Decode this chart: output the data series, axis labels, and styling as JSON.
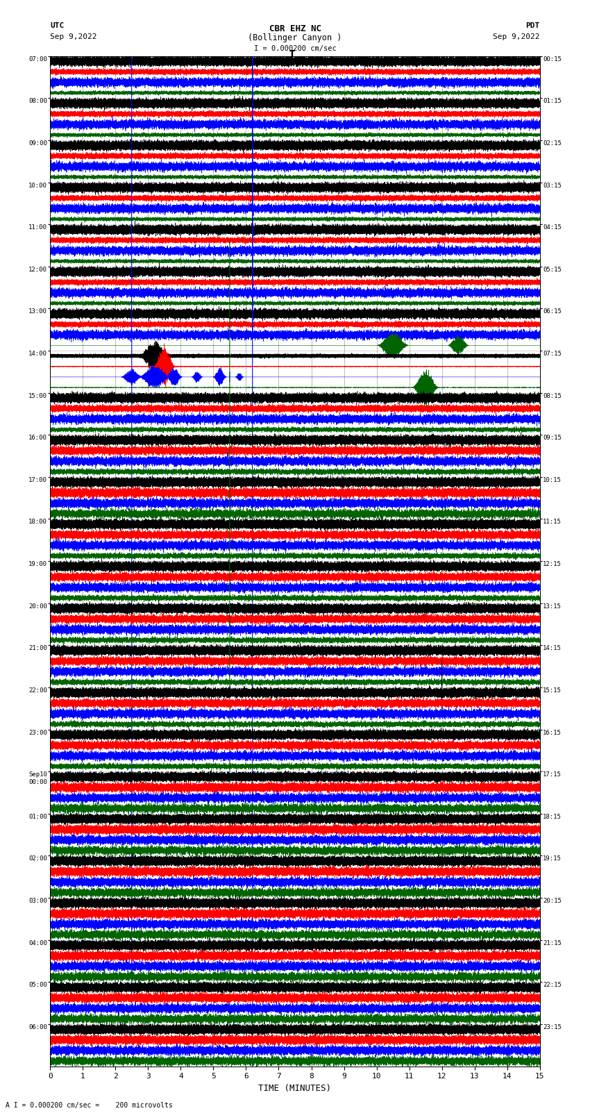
{
  "title_line1": "CBR EHZ NC",
  "title_line2": "(Bollinger Canyon )",
  "scale_label": "I = 0.000200 cm/sec",
  "footer_label": "A I = 0.000200 cm/sec =    200 microvolts",
  "utc_label": "UTC",
  "utc_date": "Sep 9,2022",
  "pdt_label": "PDT",
  "pdt_date": "Sep 9,2022",
  "xlabel": "TIME (MINUTES)",
  "left_times": [
    "07:00",
    "08:00",
    "09:00",
    "10:00",
    "11:00",
    "12:00",
    "13:00",
    "14:00",
    "15:00",
    "16:00",
    "17:00",
    "18:00",
    "19:00",
    "20:00",
    "21:00",
    "22:00",
    "23:00",
    "Sep10\n00:00",
    "01:00",
    "02:00",
    "03:00",
    "04:00",
    "05:00",
    "06:00"
  ],
  "right_times": [
    "00:15",
    "01:15",
    "02:15",
    "03:15",
    "04:15",
    "05:15",
    "06:15",
    "07:15",
    "08:15",
    "09:15",
    "10:15",
    "11:15",
    "12:15",
    "13:15",
    "14:15",
    "15:15",
    "16:15",
    "17:15",
    "18:15",
    "19:15",
    "20:15",
    "21:15",
    "22:15",
    "23:15"
  ],
  "colors": [
    "black",
    "red",
    "blue",
    "darkgreen"
  ],
  "n_rows": 24,
  "traces_per_row": 4,
  "minutes": 15,
  "noise_scales": [
    0.18,
    0.18,
    0.18,
    0.18,
    0.18,
    0.18,
    0.18,
    0.25,
    0.2,
    0.22,
    0.28,
    0.22,
    0.22,
    0.22,
    0.22,
    0.22,
    0.22,
    0.35,
    0.45,
    0.6,
    0.9,
    1.6,
    2.2,
    2.8
  ],
  "ch_noise_factors": [
    1.0,
    0.6,
    0.8,
    0.5
  ]
}
